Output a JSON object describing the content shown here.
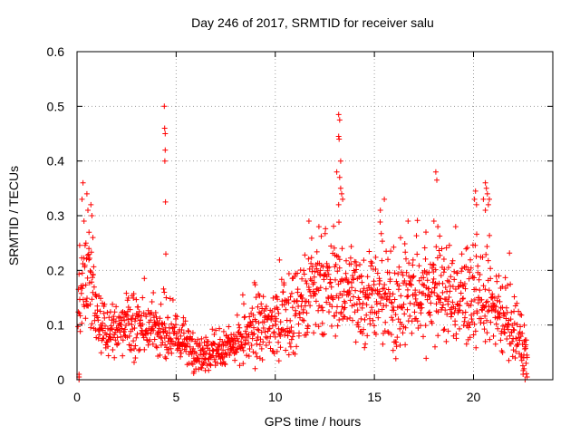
{
  "chart_data": {
    "type": "scatter",
    "title": "Day 246 of 2017, SRMTID for receiver salu",
    "xlabel": "GPS time / hours",
    "ylabel": "SRMTID / TECUs",
    "xlim": [
      0,
      24
    ],
    "ylim": [
      0,
      0.6
    ],
    "xticks": [
      0,
      5,
      10,
      15,
      20
    ],
    "xtick_labels": [
      "0",
      "5",
      "10",
      "15",
      "20"
    ],
    "yticks": [
      0,
      0.1,
      0.2,
      0.3,
      0.4,
      0.5,
      0.6
    ],
    "ytick_labels": [
      "0",
      "0.1",
      "0.2",
      "0.3",
      "0.4",
      "0.5",
      "0.6"
    ],
    "grid": true,
    "marker": "+",
    "series": [
      {
        "name": "SRMTID",
        "color": "#ff0000",
        "profile": [
          [
            0.05,
            0.12,
            0.06,
            0.0
          ],
          [
            0.3,
            0.16,
            0.08,
            0.03
          ],
          [
            0.7,
            0.18,
            0.08,
            0.04
          ],
          [
            1.0,
            0.1,
            0.05,
            0.02
          ],
          [
            2.0,
            0.09,
            0.05,
            0.02
          ],
          [
            3.0,
            0.1,
            0.05,
            0.02
          ],
          [
            4.0,
            0.09,
            0.05,
            0.01
          ],
          [
            5.0,
            0.08,
            0.04,
            0.01
          ],
          [
            6.0,
            0.05,
            0.03,
            0.01
          ],
          [
            7.0,
            0.05,
            0.03,
            0.01
          ],
          [
            8.0,
            0.06,
            0.04,
            0.01
          ],
          [
            9.0,
            0.09,
            0.05,
            0.01
          ],
          [
            10.0,
            0.1,
            0.06,
            0.02
          ],
          [
            11.0,
            0.13,
            0.07,
            0.02
          ],
          [
            12.0,
            0.16,
            0.08,
            0.03
          ],
          [
            13.0,
            0.17,
            0.08,
            0.03
          ],
          [
            14.0,
            0.16,
            0.08,
            0.03
          ],
          [
            15.0,
            0.15,
            0.08,
            0.03
          ],
          [
            16.0,
            0.14,
            0.08,
            0.02
          ],
          [
            17.0,
            0.15,
            0.08,
            0.02
          ],
          [
            18.0,
            0.17,
            0.08,
            0.02
          ],
          [
            19.0,
            0.15,
            0.08,
            0.02
          ],
          [
            20.0,
            0.15,
            0.08,
            0.02
          ],
          [
            21.0,
            0.13,
            0.07,
            0.02
          ],
          [
            22.0,
            0.09,
            0.05,
            0.01
          ],
          [
            22.7,
            0.06,
            0.04,
            0.0
          ]
        ],
        "extra_points": [
          [
            0.1,
            0.0
          ],
          [
            0.1,
            0.01
          ],
          [
            0.1,
            0.005
          ],
          [
            0.3,
            0.36
          ],
          [
            0.25,
            0.33
          ],
          [
            0.5,
            0.34
          ],
          [
            0.55,
            0.31
          ],
          [
            0.7,
            0.32
          ],
          [
            0.75,
            0.3
          ],
          [
            0.8,
            0.26
          ],
          [
            0.45,
            0.25
          ],
          [
            0.6,
            0.24
          ],
          [
            0.35,
            0.29
          ],
          [
            4.4,
            0.5
          ],
          [
            4.42,
            0.46
          ],
          [
            4.45,
            0.45
          ],
          [
            4.45,
            0.42
          ],
          [
            4.43,
            0.4
          ],
          [
            4.46,
            0.325
          ],
          [
            4.48,
            0.23
          ],
          [
            4.4,
            0.16
          ],
          [
            4.5,
            0.15
          ],
          [
            13.2,
            0.485
          ],
          [
            13.25,
            0.475
          ],
          [
            13.2,
            0.445
          ],
          [
            13.22,
            0.44
          ],
          [
            13.3,
            0.4
          ],
          [
            13.25,
            0.37
          ],
          [
            13.3,
            0.35
          ],
          [
            13.1,
            0.38
          ],
          [
            13.4,
            0.33
          ],
          [
            13.2,
            0.32
          ],
          [
            13.35,
            0.34
          ],
          [
            18.1,
            0.38
          ],
          [
            18.15,
            0.365
          ],
          [
            18.0,
            0.29
          ],
          [
            18.2,
            0.28
          ],
          [
            20.6,
            0.36
          ],
          [
            20.65,
            0.35
          ],
          [
            20.7,
            0.34
          ],
          [
            20.5,
            0.33
          ],
          [
            20.8,
            0.33
          ],
          [
            20.75,
            0.32
          ],
          [
            20.6,
            0.31
          ],
          [
            20.1,
            0.345
          ],
          [
            20.05,
            0.33
          ],
          [
            20.15,
            0.32
          ],
          [
            15.5,
            0.33
          ],
          [
            15.3,
            0.31
          ],
          [
            16.7,
            0.29
          ],
          [
            17.6,
            0.27
          ],
          [
            19.1,
            0.28
          ],
          [
            11.7,
            0.29
          ],
          [
            12.2,
            0.28
          ],
          [
            22.5,
            0.01
          ],
          [
            22.6,
            0.0
          ],
          [
            22.55,
            0.02
          ],
          [
            22.65,
            0.03
          ],
          [
            22.7,
            0.005
          ]
        ]
      }
    ]
  }
}
